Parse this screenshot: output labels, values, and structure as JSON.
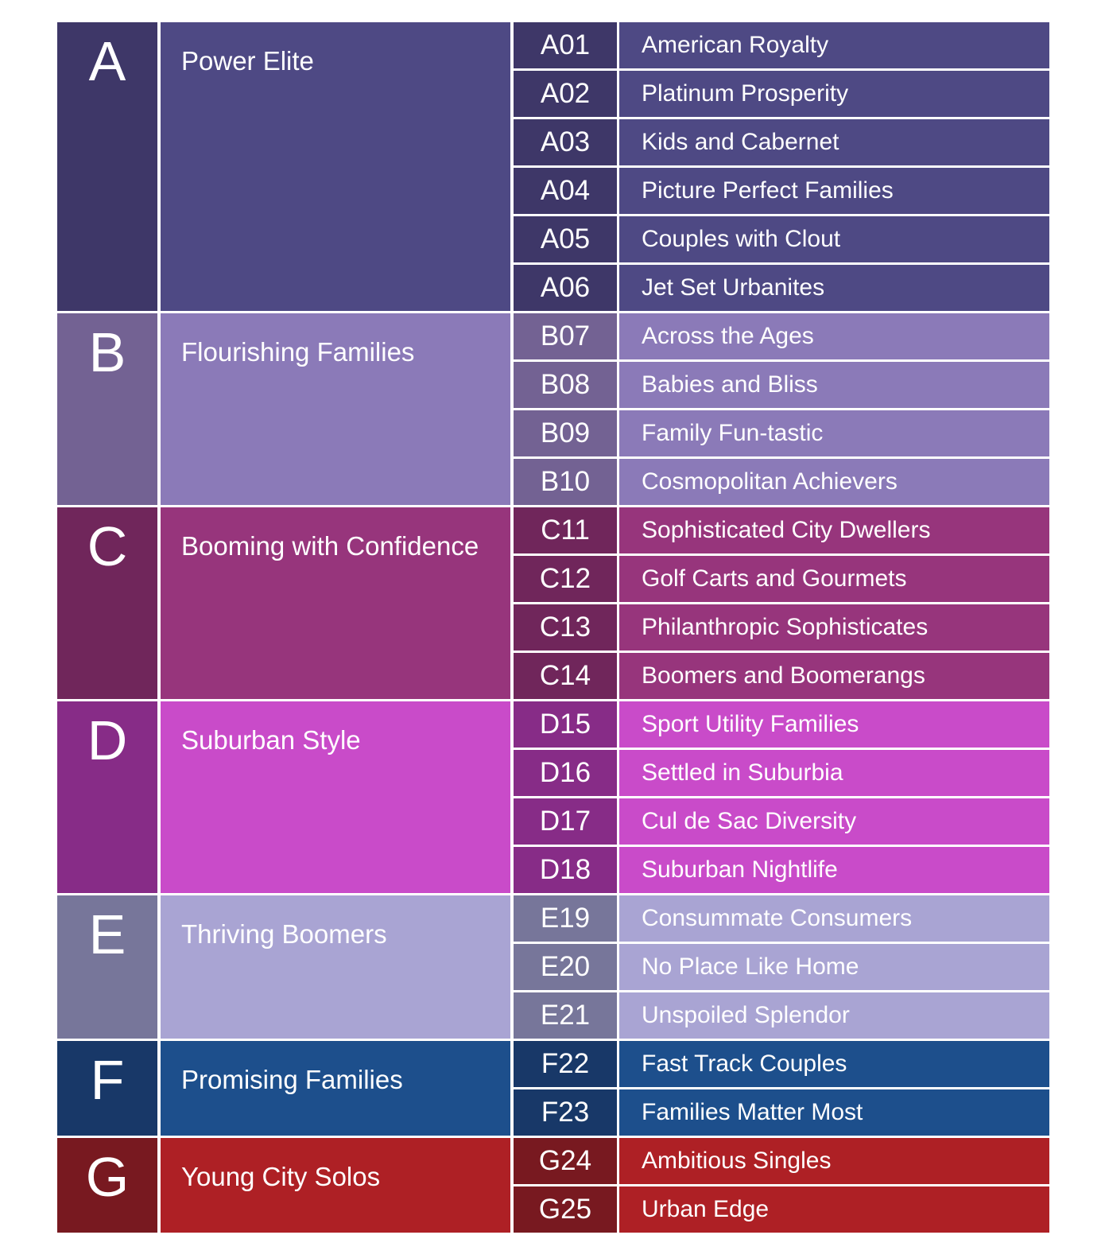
{
  "groups": [
    {
      "letter": "A",
      "name": "Power Elite",
      "colors": {
        "dark": "#3e3768",
        "mid": "#4e4984"
      },
      "segments": [
        {
          "code": "A01",
          "name": "American Royalty"
        },
        {
          "code": "A02",
          "name": "Platinum Prosperity"
        },
        {
          "code": "A03",
          "name": "Kids and Cabernet"
        },
        {
          "code": "A04",
          "name": "Picture Perfect Families"
        },
        {
          "code": "A05",
          "name": "Couples with Clout"
        },
        {
          "code": "A06",
          "name": "Jet Set Urbanites"
        }
      ]
    },
    {
      "letter": "B",
      "name": "Flourishing Families",
      "colors": {
        "dark": "#736293",
        "mid": "#8b7ab8"
      },
      "segments": [
        {
          "code": "B07",
          "name": "Across the Ages"
        },
        {
          "code": "B08",
          "name": "Babies and Bliss"
        },
        {
          "code": "B09",
          "name": "Family Fun-tastic"
        },
        {
          "code": "B10",
          "name": "Cosmopolitan Achievers"
        }
      ]
    },
    {
      "letter": "C",
      "name": "Booming with Confidence",
      "colors": {
        "dark": "#70265b",
        "mid": "#97357c"
      },
      "segments": [
        {
          "code": "C11",
          "name": "Sophisticated City Dwellers"
        },
        {
          "code": "C12",
          "name": "Golf Carts and Gourmets"
        },
        {
          "code": "C13",
          "name": "Philanthropic Sophisticates"
        },
        {
          "code": "C14",
          "name": "Boomers and Boomerangs"
        }
      ]
    },
    {
      "letter": "D",
      "name": "Suburban Style",
      "colors": {
        "dark": "#872c87",
        "mid": "#c94bc9"
      },
      "segments": [
        {
          "code": "D15",
          "name": "Sport Utility Families"
        },
        {
          "code": "D16",
          "name": "Settled in Suburbia"
        },
        {
          "code": "D17",
          "name": "Cul de Sac Diversity"
        },
        {
          "code": "D18",
          "name": "Suburban Nightlife"
        }
      ]
    },
    {
      "letter": "E",
      "name": "Thriving Boomers",
      "colors": {
        "dark": "#77769a",
        "mid": "#a9a4d3"
      },
      "segments": [
        {
          "code": "E19",
          "name": "Consummate Consumers"
        },
        {
          "code": "E20",
          "name": "No Place Like Home"
        },
        {
          "code": "E21",
          "name": "Unspoiled Splendor"
        }
      ]
    },
    {
      "letter": "F",
      "name": "Promising Families",
      "colors": {
        "dark": "#183868",
        "mid": "#1d4f8c"
      },
      "segments": [
        {
          "code": "F22",
          "name": "Fast Track Couples"
        },
        {
          "code": "F23",
          "name": "Families Matter Most"
        }
      ]
    },
    {
      "letter": "G",
      "name": "Young City Solos",
      "colors": {
        "dark": "#781920",
        "mid": "#ae2025"
      },
      "segments": [
        {
          "code": "G24",
          "name": "Ambitious Singles"
        },
        {
          "code": "G25",
          "name": "Urban Edge"
        }
      ]
    }
  ]
}
